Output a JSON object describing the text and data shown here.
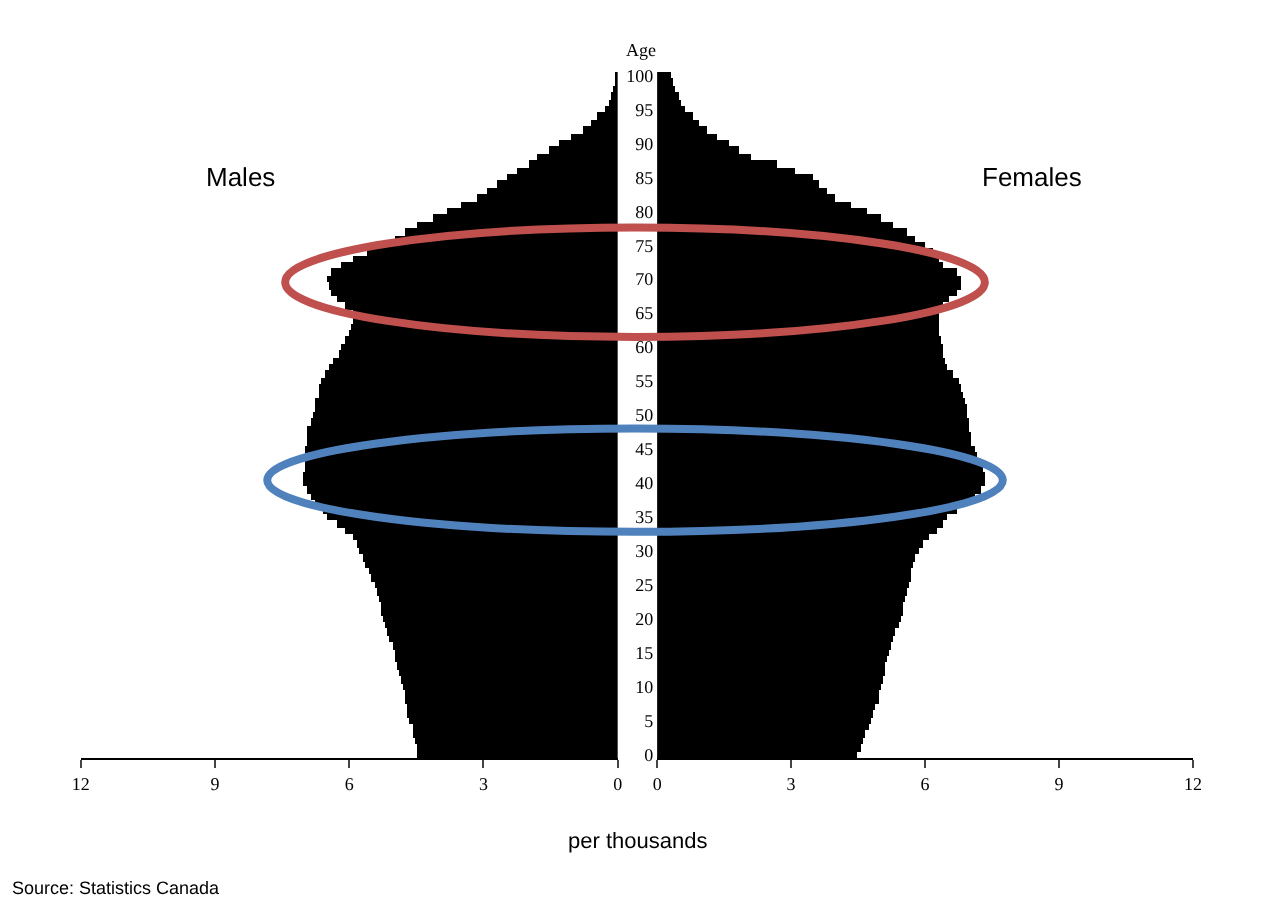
{
  "chart_data": [
    {
      "type": "bar",
      "orientation": "horizontal",
      "xlabel": "per thousands",
      "tick_labels": "x",
      "categories": [
        "100",
        null,
        null,
        null,
        null,
        "95",
        null,
        null,
        null,
        null,
        "90",
        null,
        null,
        null,
        null,
        "85",
        null,
        null,
        null,
        null,
        "80",
        null,
        null,
        null,
        null,
        "75",
        null,
        null,
        null,
        null,
        "70",
        null,
        null,
        null,
        null,
        "65",
        null,
        null,
        null,
        null,
        "60",
        null,
        null,
        null,
        null,
        "55",
        null,
        null,
        null,
        null,
        "50",
        null,
        null,
        null,
        null,
        "45",
        null,
        null,
        null,
        null,
        "40",
        null,
        null,
        null,
        null,
        "35",
        null,
        null,
        null,
        null,
        "30",
        null,
        null,
        null,
        null,
        "25",
        null,
        null,
        null,
        null,
        "20",
        null,
        null,
        null,
        null,
        "15",
        null,
        null,
        null,
        null,
        "10",
        null,
        null,
        null,
        null,
        "5",
        null,
        null,
        null,
        null,
        "0"
      ],
      "xlim": [
        12,
        0
      ],
      "xticks": [
        0,
        3,
        6,
        9,
        12
      ],
      "series": [
        {
          "name": "Males",
          "color": "#000000",
          "values": [
            0.05,
            0.05,
            0.1,
            0.15,
            0.2,
            0.3,
            0.45,
            0.6,
            0.8,
            1.05,
            1.3,
            1.55,
            1.8,
            2.0,
            2.25,
            2.5,
            2.7,
            2.95,
            3.15,
            3.5,
            3.8,
            4.15,
            4.5,
            4.75,
            5.0,
            5.25,
            5.6,
            5.9,
            6.2,
            6.4,
            6.5,
            6.45,
            6.4,
            6.3,
            6.1,
            5.9,
            5.9,
            5.95,
            6.0,
            6.1,
            6.2,
            6.25,
            6.35,
            6.45,
            6.55,
            6.65,
            6.7,
            6.7,
            6.75,
            6.75,
            6.8,
            6.85,
            6.95,
            6.95,
            6.95,
            7.0,
            7.0,
            7.0,
            7.0,
            7.05,
            7.05,
            6.95,
            6.85,
            6.75,
            6.6,
            6.5,
            6.3,
            6.1,
            5.9,
            5.85,
            5.8,
            5.7,
            5.65,
            5.55,
            5.5,
            5.45,
            5.4,
            5.35,
            5.3,
            5.3,
            5.25,
            5.2,
            5.15,
            5.1,
            5.05,
            5.0,
            5.0,
            4.95,
            4.9,
            4.85,
            4.8,
            4.75,
            4.75,
            4.7,
            4.7,
            4.65,
            4.6,
            4.6,
            4.55,
            4.5,
            4.5
          ]
        }
      ]
    },
    {
      "type": "bar",
      "orientation": "horizontal",
      "ylabel": "Age",
      "categories": [
        "100",
        null,
        null,
        null,
        null,
        "95",
        null,
        null,
        null,
        null,
        "90",
        null,
        null,
        null,
        null,
        "85",
        null,
        null,
        null,
        null,
        "80",
        null,
        null,
        null,
        null,
        "75",
        null,
        null,
        null,
        null,
        "70",
        null,
        null,
        null,
        null,
        "65",
        null,
        null,
        null,
        null,
        "60",
        null,
        null,
        null,
        null,
        "55",
        null,
        null,
        null,
        null,
        "50",
        null,
        null,
        null,
        null,
        "45",
        null,
        null,
        null,
        null,
        "40",
        null,
        null,
        null,
        null,
        "35",
        null,
        null,
        null,
        null,
        "30",
        null,
        null,
        null,
        null,
        "25",
        null,
        null,
        null,
        null,
        "20",
        null,
        null,
        null,
        null,
        "15",
        null,
        null,
        null,
        null,
        "10",
        null,
        null,
        null,
        null,
        "5",
        null,
        null,
        null,
        null,
        "0"
      ],
      "xlim": [
        0,
        12
      ],
      "xticks": [
        0,
        3,
        6,
        9,
        12
      ],
      "annotations": [
        "Source: Statistics Canada"
      ],
      "series": [
        {
          "name": "Females",
          "color": "#000000",
          "values": [
            0.3,
            0.35,
            0.4,
            0.5,
            0.55,
            0.63,
            0.8,
            0.95,
            1.1,
            1.35,
            1.6,
            1.85,
            2.1,
            2.7,
            3.1,
            3.5,
            3.65,
            3.8,
            4.0,
            4.35,
            4.7,
            5.0,
            5.3,
            5.6,
            5.8,
            6.0,
            6.2,
            6.3,
            6.4,
            6.7,
            6.8,
            6.8,
            6.7,
            6.55,
            6.4,
            6.3,
            6.3,
            6.3,
            6.3,
            6.35,
            6.4,
            6.4,
            6.45,
            6.5,
            6.65,
            6.75,
            6.8,
            6.85,
            6.9,
            6.95,
            6.95,
            7.0,
            7.0,
            7.05,
            7.05,
            7.1,
            7.15,
            7.2,
            7.3,
            7.35,
            7.35,
            7.25,
            7.1,
            6.9,
            6.7,
            6.5,
            6.4,
            6.25,
            6.1,
            5.95,
            5.85,
            5.8,
            5.75,
            5.7,
            5.7,
            5.65,
            5.6,
            5.55,
            5.5,
            5.5,
            5.45,
            5.4,
            5.35,
            5.3,
            5.25,
            5.2,
            5.15,
            5.1,
            5.1,
            5.05,
            5.0,
            4.95,
            4.95,
            4.9,
            4.85,
            4.8,
            4.75,
            4.65,
            4.6,
            4.55,
            4.5
          ]
        }
      ]
    }
  ]
}
